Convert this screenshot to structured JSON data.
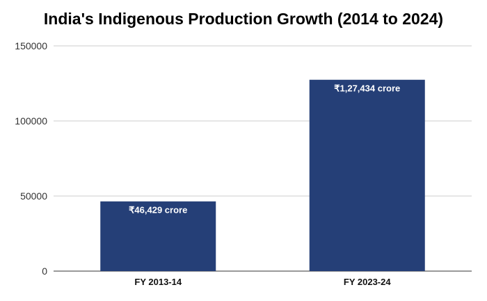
{
  "chart_data": {
    "type": "bar",
    "title": "India's Indigenous Production Growth (2014 to 2024)",
    "xlabel": "",
    "ylabel": "",
    "categories": [
      "FY 2013-14",
      "FY 2023-24"
    ],
    "values": [
      46429,
      127434
    ],
    "data_labels": [
      "₹46,429 crore",
      "₹1,27,434 crore"
    ],
    "ylim": [
      0,
      150000
    ],
    "yticks": [
      0,
      50000,
      100000,
      150000
    ],
    "ytick_labels": [
      "0",
      "50000",
      "100000",
      "150000"
    ],
    "grid": true,
    "legend": "none",
    "colors": {
      "bar": "#253f77",
      "grid": "#cccccc",
      "axis": "#333333"
    }
  }
}
